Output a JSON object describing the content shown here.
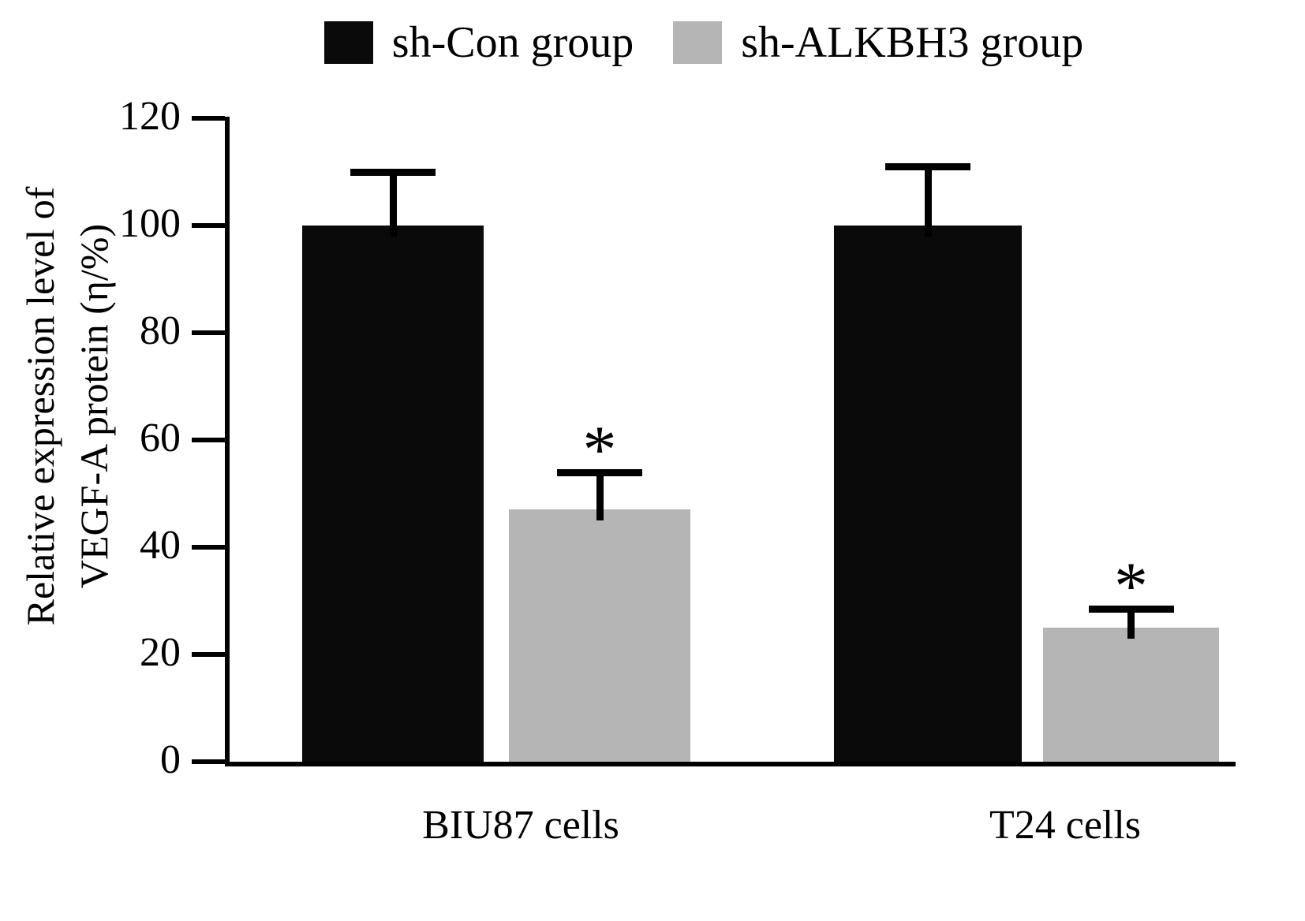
{
  "figure": {
    "background": "#ffffff"
  },
  "legend": {
    "items": [
      {
        "label": "sh-Con group",
        "color": "#0a0a0a"
      },
      {
        "label": "sh-ALKBH3 group",
        "color": "#b5b5b5"
      }
    ]
  },
  "chart_data": {
    "type": "bar",
    "title": "",
    "ylabel": "Relative expression level of VEGF-A protein (η/%)",
    "ylabel_lines": [
      "Relative expression level of",
      "VEGF-A protein (η/%)"
    ],
    "categories": [
      "BIU87 cells",
      "T24 cells"
    ],
    "series": [
      {
        "name": "sh-Con group",
        "color": "#0a0a0a",
        "values": [
          100,
          100
        ],
        "errors": [
          10,
          11
        ],
        "significance": [
          "",
          ""
        ]
      },
      {
        "name": "sh-ALKBH3 group",
        "color": "#b5b5b5",
        "values": [
          47,
          25
        ],
        "errors": [
          7,
          3.5
        ],
        "significance": [
          "*",
          "*"
        ]
      }
    ],
    "ylim": [
      0,
      120
    ],
    "yticks": [
      0,
      20,
      40,
      60,
      80,
      100,
      120
    ],
    "grid": false,
    "legend_position": "top"
  }
}
